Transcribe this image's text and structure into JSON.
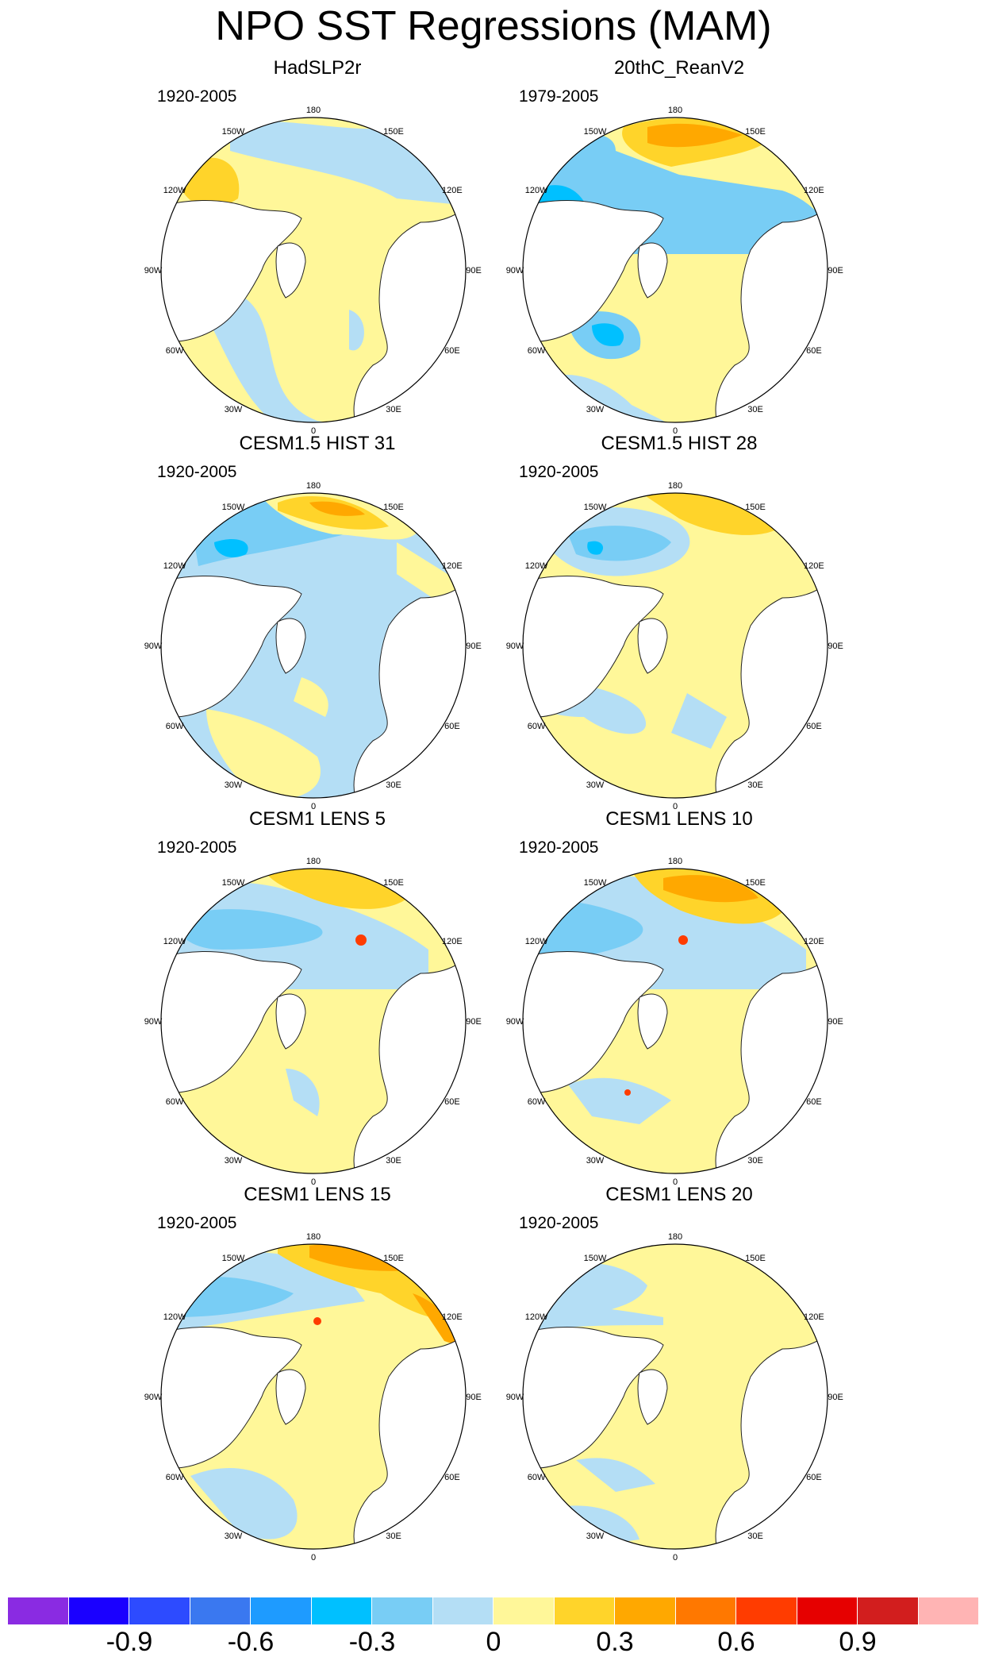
{
  "title": "NPO SST Regressions (MAM)",
  "lon_labels": [
    "180",
    "150E",
    "120E",
    "90E",
    "60E",
    "30E",
    "0",
    "30W",
    "60W",
    "90W",
    "120W",
    "150W"
  ],
  "panels": [
    {
      "name": "HadSLP2r",
      "period": "1920-2005",
      "pattern": "had"
    },
    {
      "name": "20thC_ReanV2",
      "period": "1979-2005",
      "pattern": "rean"
    },
    {
      "name": "CESM1.5 HIST 31",
      "period": "1920-2005",
      "pattern": "hist31"
    },
    {
      "name": "CESM1.5 HIST 28",
      "period": "1920-2005",
      "pattern": "hist28"
    },
    {
      "name": "CESM1 LENS 5",
      "period": "1920-2005",
      "pattern": "lens5"
    },
    {
      "name": "CESM1 LENS 10",
      "period": "1920-2005",
      "pattern": "lens10"
    },
    {
      "name": "CESM1 LENS 15",
      "period": "1920-2005",
      "pattern": "lens15"
    },
    {
      "name": "CESM1 LENS 20",
      "period": "1920-2005",
      "pattern": "lens20"
    }
  ],
  "colorbar": {
    "colors": [
      "#8a2be2",
      "#1a00ff",
      "#2d4bff",
      "#3a78f0",
      "#1e9bff",
      "#00c0ff",
      "#78cdf5",
      "#b4def5",
      "#fff799",
      "#ffd42a",
      "#ffa800",
      "#ff7800",
      "#ff3c00",
      "#e60000",
      "#d21e1e",
      "#ffb4b4"
    ],
    "labels": [
      "-0.9",
      "-0.6",
      "-0.3",
      "0",
      "0.3",
      "0.6",
      "0.9"
    ]
  }
}
